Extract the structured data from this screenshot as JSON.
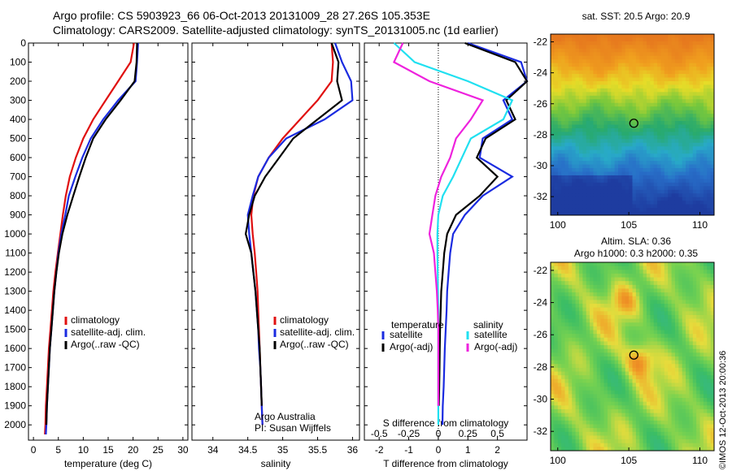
{
  "header": {
    "line1": "Argo profile: CS 5903923_66 06-Oct-2013 20131009_28 27.26S 105.353E",
    "line2": "Climatology: CARS2009. Satellite-adjusted climatology: synTS_20131005.nc (1d earlier)"
  },
  "colors": {
    "climatology": "#e01010",
    "satellite": "#1a2be0",
    "argo": "#000000",
    "sal_sat": "#20e0f0",
    "sal_argo": "#ee22dd"
  },
  "chart_data": [
    {
      "type": "line",
      "id": "temperature",
      "xlabel": "temperature (deg C)",
      "ylabel": "",
      "xlim": [
        -1,
        31
      ],
      "ylim": [
        2080,
        0
      ],
      "xticks": [
        0,
        5,
        10,
        15,
        20,
        25,
        30
      ],
      "yticks": [
        0,
        100,
        200,
        300,
        400,
        500,
        600,
        700,
        800,
        900,
        1000,
        1100,
        1200,
        1300,
        1400,
        1500,
        1600,
        1700,
        1800,
        1900,
        2000
      ],
      "legend_position": "center-right",
      "series": [
        {
          "name": "climatology",
          "color": "#e01010",
          "x": [
            20.2,
            19.5,
            17.0,
            14.5,
            12.0,
            10.0,
            8.5,
            7.3,
            6.5,
            5.9,
            5.4,
            4.9,
            4.4,
            4.0,
            3.7,
            3.4,
            3.1,
            2.9,
            2.7,
            2.5,
            2.4,
            2.3
          ],
          "y": [
            0,
            100,
            200,
            300,
            400,
            500,
            600,
            700,
            800,
            900,
            1000,
            1100,
            1200,
            1300,
            1400,
            1500,
            1600,
            1700,
            1800,
            1900,
            2000,
            2050
          ]
        },
        {
          "name": "satellite-adj. clim.",
          "color": "#1a2be0",
          "x": [
            21.0,
            20.8,
            20.5,
            17.0,
            14.0,
            11.5,
            9.8,
            8.4,
            7.1,
            6.4,
            5.6,
            5.0,
            4.6,
            4.2,
            3.9,
            3.6,
            3.3,
            3.1,
            2.9,
            2.7,
            2.6,
            2.5
          ],
          "y": [
            0,
            100,
            200,
            300,
            400,
            500,
            600,
            700,
            800,
            900,
            1000,
            1100,
            1200,
            1300,
            1400,
            1500,
            1600,
            1700,
            1800,
            1900,
            2000,
            2050
          ]
        },
        {
          "name": "Argo(..raw -QC)",
          "color": "#000000",
          "x": [
            20.8,
            20.7,
            20.3,
            17.5,
            14.5,
            12.0,
            10.5,
            9.2,
            8.0,
            6.8,
            5.8,
            5.1,
            4.6,
            4.2,
            3.9,
            3.6,
            3.3,
            3.1,
            2.9,
            2.7,
            2.6
          ],
          "y": [
            0,
            100,
            200,
            300,
            400,
            500,
            600,
            700,
            800,
            900,
            1000,
            1100,
            1200,
            1300,
            1400,
            1500,
            1600,
            1700,
            1800,
            1900,
            2000
          ]
        }
      ]
    },
    {
      "type": "line",
      "id": "salinity",
      "xlabel": "salinity",
      "xlim": [
        33.7,
        36.1
      ],
      "ylim": [
        2080,
        0
      ],
      "xticks": [
        34,
        34.5,
        35,
        35.5,
        36
      ],
      "legend_position": "center-right",
      "series": [
        {
          "name": "climatology",
          "color": "#e01010",
          "x": [
            35.7,
            35.72,
            35.7,
            35.5,
            35.25,
            35.0,
            34.8,
            34.65,
            34.58,
            34.55,
            34.57,
            34.6,
            34.62,
            34.64,
            34.65,
            34.66,
            34.67,
            34.68,
            34.69,
            34.7,
            34.71
          ],
          "y": [
            0,
            100,
            200,
            300,
            400,
            500,
            600,
            700,
            800,
            900,
            1000,
            1100,
            1200,
            1300,
            1400,
            1500,
            1600,
            1700,
            1800,
            1900,
            2000
          ]
        },
        {
          "name": "satellite-adj. clim.",
          "color": "#1a2be0",
          "x": [
            35.75,
            35.85,
            35.98,
            36.0,
            35.6,
            35.05,
            34.8,
            34.65,
            34.57,
            34.5,
            34.52,
            34.55,
            34.58,
            34.61,
            34.63,
            34.65,
            34.66,
            34.68,
            34.69,
            34.7,
            34.71
          ],
          "y": [
            0,
            100,
            200,
            300,
            400,
            500,
            600,
            700,
            800,
            900,
            1000,
            1100,
            1200,
            1300,
            1400,
            1500,
            1600,
            1700,
            1800,
            1900,
            2000
          ]
        },
        {
          "name": "Argo(..raw -QC)",
          "color": "#000000",
          "x": [
            35.7,
            35.8,
            35.78,
            35.85,
            35.5,
            35.15,
            34.95,
            34.75,
            34.6,
            34.52,
            34.47,
            34.55,
            34.58,
            34.61,
            34.63,
            34.65,
            34.67,
            34.68,
            34.69,
            34.7
          ],
          "y": [
            0,
            100,
            200,
            300,
            400,
            500,
            600,
            700,
            800,
            900,
            1000,
            1100,
            1200,
            1300,
            1400,
            1500,
            1600,
            1700,
            1800,
            1900
          ]
        }
      ]
    },
    {
      "type": "line",
      "id": "differences",
      "xlabel": "T difference from climatology",
      "top_xlabel": "S difference from climatology",
      "xlim": [
        -2.5,
        3
      ],
      "ylim": [
        2080,
        0
      ],
      "xticks": [
        -2,
        -1,
        0,
        1,
        2
      ],
      "top_xticks": [
        "-0.5",
        "-0.25",
        "0",
        "0.25",
        "0.5"
      ],
      "legend": {
        "temperature_header": "temperature",
        "salinity_header": "salinity",
        "items": [
          {
            "name": "satellite",
            "color": "#1a2be0"
          },
          {
            "name": "Argo(-adj)",
            "color": "#000000"
          },
          {
            "name": "satellite",
            "color": "#20e0f0"
          },
          {
            "name": "Argo(-adj)",
            "color": "#ee22dd"
          }
        ]
      },
      "series": [
        {
          "name": "temperature satellite",
          "color": "#1a2be0",
          "x": [
            1.0,
            2.8,
            3.0,
            2.2,
            2.5,
            1.5,
            1.4,
            2.5,
            1.5,
            0.9,
            0.5,
            0.4,
            0.35,
            0.3,
            0.28,
            0.25,
            0.22,
            0.2,
            0.18,
            0.15,
            0.14
          ],
          "y": [
            0,
            100,
            200,
            300,
            400,
            500,
            600,
            700,
            800,
            900,
            1000,
            1100,
            1200,
            1300,
            1400,
            1500,
            1600,
            1700,
            1800,
            1900,
            2000
          ]
        },
        {
          "name": "temperature Argo(-adj)",
          "color": "#000000",
          "x": [
            0.9,
            2.6,
            3.0,
            2.3,
            2.6,
            1.6,
            1.3,
            2.0,
            1.4,
            0.6,
            0.3,
            0.2,
            0.15,
            0.1,
            0.08,
            0.06,
            0.05,
            0.04,
            0.03,
            0.02
          ],
          "y": [
            0,
            100,
            200,
            300,
            400,
            500,
            600,
            700,
            800,
            900,
            1000,
            1100,
            1200,
            1300,
            1400,
            1500,
            1600,
            1700,
            1800,
            1900
          ]
        },
        {
          "name": "salinity satellite",
          "color": "#20e0f0",
          "x": [
            -1.5,
            -0.8,
            1.0,
            2.5,
            2.2,
            1.1,
            0.8,
            0.5,
            0.15,
            0.0,
            -0.03,
            -0.03,
            -0.02,
            -0.01,
            0.0,
            0.0,
            0.0,
            0.0,
            0.0,
            0.0,
            0.0
          ],
          "y": [
            0,
            100,
            200,
            300,
            400,
            500,
            600,
            700,
            800,
            900,
            1000,
            1100,
            1200,
            1300,
            1400,
            1500,
            1600,
            1700,
            1800,
            1900,
            2000
          ]
        },
        {
          "name": "salinity Argo(-adj)",
          "color": "#ee22dd",
          "x": [
            -1.2,
            -1.5,
            -0.3,
            1.5,
            1.1,
            0.6,
            0.4,
            0.1,
            -0.1,
            -0.2,
            -0.3,
            -0.15,
            -0.1,
            -0.05,
            -0.02,
            0.0,
            0.0,
            0.0,
            0.0,
            0.0
          ],
          "y": [
            0,
            100,
            200,
            300,
            400,
            500,
            600,
            700,
            800,
            900,
            1000,
            1100,
            1200,
            1300,
            1400,
            1500,
            1600,
            1700,
            1800,
            1900
          ]
        }
      ]
    },
    {
      "type": "heatmap",
      "id": "sst-map",
      "title": "sat. SST: 20.5 Argo: 20.9",
      "xlim": [
        99.5,
        111
      ],
      "ylim": [
        -33.2,
        -21.5
      ],
      "xticks": [
        100,
        105,
        110
      ],
      "yticks": [
        -22,
        -24,
        -26,
        -28,
        -30,
        -32
      ],
      "marker": {
        "lon": 105.353,
        "lat": -27.26
      }
    },
    {
      "type": "heatmap",
      "id": "sla-map",
      "title": "Altim. SLA: 0.36",
      "subtitle": "Argo h1000: 0.3 h2000: 0.35",
      "xlim": [
        99.5,
        111
      ],
      "ylim": [
        -33.2,
        -21.5
      ],
      "xticks": [
        100,
        105,
        110
      ],
      "yticks": [
        -22,
        -24,
        -26,
        -28,
        -30,
        -32
      ],
      "marker": {
        "lon": 105.353,
        "lat": -27.26
      }
    }
  ],
  "notes": {
    "argo_line1": "Argo Australia",
    "argo_line2": "PI: Susan Wijffels",
    "imos": "©IMOS 12-Oct-2013 20:00:36"
  }
}
